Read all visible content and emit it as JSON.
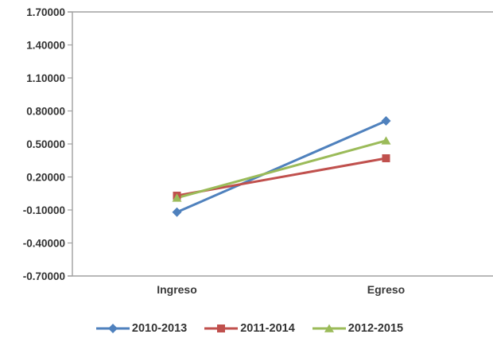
{
  "chart_data": {
    "type": "line",
    "title": "",
    "xlabel": "",
    "ylabel": "",
    "categories": [
      "Ingreso",
      "Egreso"
    ],
    "series": [
      {
        "name": "2010-2013",
        "color": "#4F81BD",
        "marker": "diamond",
        "values": [
          -0.12,
          0.71
        ]
      },
      {
        "name": "2011-2014",
        "color": "#C0504D",
        "marker": "square",
        "values": [
          0.03,
          0.37
        ]
      },
      {
        "name": "2012-2015",
        "color": "#9BBB59",
        "marker": "triangle",
        "values": [
          0.01,
          0.53
        ]
      }
    ],
    "ylim": [
      -0.7,
      1.7
    ],
    "ytick_step": 0.3,
    "ytick_labels": [
      "1.70000",
      "1.40000",
      "1.10000",
      "0.80000",
      "0.50000",
      "0.20000",
      "-0.10000",
      "-0.40000",
      "-0.70000"
    ],
    "grid": false,
    "legend_position": "bottom",
    "colors": {
      "axis": "#A0A0A0",
      "label_text": "#333333",
      "background": "#FFFFFF"
    }
  }
}
